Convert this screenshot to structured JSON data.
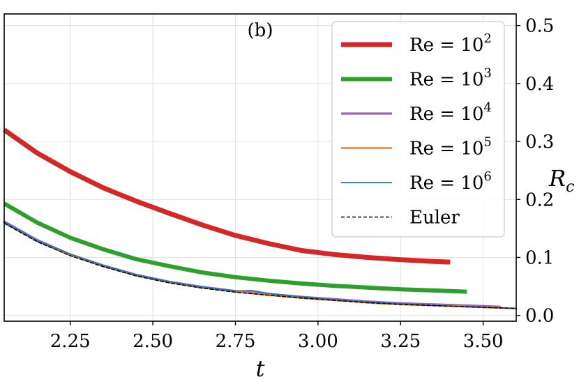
{
  "chart_data": {
    "type": "line",
    "panel_label": "(b)",
    "xlabel": "t",
    "ylabel": "R",
    "ylabel_sub": "c",
    "xlim": [
      2.05,
      3.6
    ],
    "ylim": [
      -0.01,
      0.52
    ],
    "xticks": [
      "2.25",
      "2.50",
      "2.75",
      "3.00",
      "3.25",
      "3.50"
    ],
    "yticks": [
      "0.0",
      "0.1",
      "0.2",
      "0.3",
      "0.4",
      "0.5"
    ],
    "y_axis_side": "right",
    "grid": true,
    "legend_position": "top-right",
    "series": [
      {
        "name": "Re = 10",
        "exp": "2",
        "color": "#d62728",
        "style": "solid",
        "x": [
          2.05,
          2.15,
          2.25,
          2.35,
          2.45,
          2.55,
          2.65,
          2.75,
          2.85,
          2.95,
          3.05,
          3.15,
          3.25,
          3.35,
          3.4
        ],
        "y": [
          0.32,
          0.28,
          0.248,
          0.22,
          0.197,
          0.176,
          0.156,
          0.138,
          0.124,
          0.112,
          0.105,
          0.1,
          0.096,
          0.093,
          0.092
        ]
      },
      {
        "name": "Re = 10",
        "exp": "3",
        "color": "#2ca02c",
        "style": "solid",
        "x": [
          2.05,
          2.15,
          2.25,
          2.35,
          2.45,
          2.55,
          2.65,
          2.75,
          2.85,
          2.95,
          3.05,
          3.15,
          3.25,
          3.35,
          3.45
        ],
        "y": [
          0.193,
          0.16,
          0.134,
          0.114,
          0.097,
          0.085,
          0.074,
          0.066,
          0.06,
          0.055,
          0.051,
          0.048,
          0.045,
          0.043,
          0.041
        ]
      },
      {
        "name": "Re = 10",
        "exp": "4",
        "color": "#9467bd",
        "style": "solid",
        "x": [
          2.05,
          2.15,
          2.25,
          2.35,
          2.45,
          2.55,
          2.65,
          2.75,
          2.85,
          2.95,
          3.05,
          3.15,
          3.25,
          3.35,
          3.45,
          3.55
        ],
        "y": [
          0.162,
          0.13,
          0.105,
          0.086,
          0.07,
          0.058,
          0.049,
          0.042,
          0.037,
          0.032,
          0.028,
          0.024,
          0.021,
          0.019,
          0.017,
          0.015
        ]
      },
      {
        "name": "Re = 10",
        "exp": "5",
        "color": "#ff7f0e",
        "style": "solid",
        "x": [
          2.05,
          2.15,
          2.25,
          2.35,
          2.45,
          2.55,
          2.65,
          2.75,
          2.85,
          2.95,
          3.05,
          3.15,
          3.25,
          3.35,
          3.45,
          3.55,
          3.6
        ],
        "y": [
          0.16,
          0.128,
          0.104,
          0.085,
          0.069,
          0.057,
          0.048,
          0.041,
          0.035,
          0.03,
          0.026,
          0.022,
          0.019,
          0.017,
          0.015,
          0.013,
          0.012
        ]
      },
      {
        "name": "Re = 10",
        "exp": "6",
        "color": "#1f77b4",
        "style": "solid",
        "x": [
          2.05,
          2.15,
          2.25,
          2.35,
          2.45,
          2.55,
          2.65,
          2.75,
          2.8,
          2.85,
          2.95,
          3.05,
          3.15,
          3.25,
          3.35,
          3.45,
          3.55,
          3.6
        ],
        "y": [
          0.161,
          0.129,
          0.106,
          0.086,
          0.07,
          0.058,
          0.049,
          0.042,
          0.043,
          0.038,
          0.032,
          0.027,
          0.023,
          0.02,
          0.017,
          0.015,
          0.013,
          0.012
        ]
      },
      {
        "name": "Euler",
        "exp": "",
        "color": "#000000",
        "style": "dashed",
        "x": [
          2.05,
          2.15,
          2.25,
          2.35,
          2.45,
          2.55,
          2.65,
          2.75,
          2.85,
          2.95,
          3.05,
          3.15,
          3.25,
          3.35,
          3.45,
          3.55,
          3.6
        ],
        "y": [
          0.159,
          0.127,
          0.103,
          0.084,
          0.068,
          0.056,
          0.047,
          0.04,
          0.035,
          0.03,
          0.026,
          0.022,
          0.019,
          0.017,
          0.015,
          0.013,
          0.012
        ]
      }
    ]
  }
}
